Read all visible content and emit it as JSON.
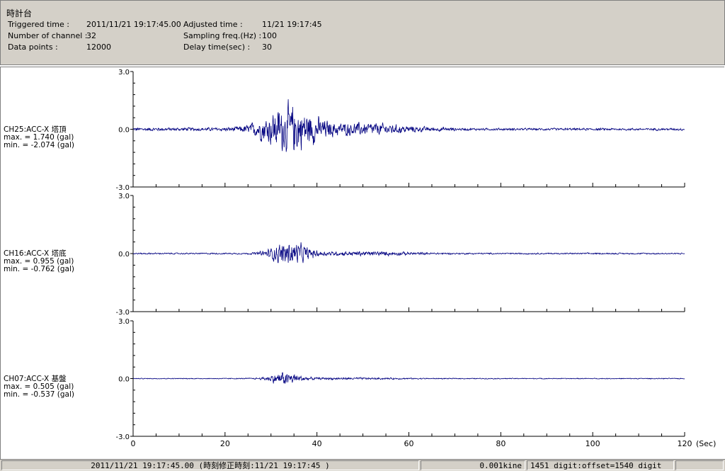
{
  "header": {
    "title": "時計台",
    "rows": [
      {
        "label": "Triggered time :",
        "value": "2011/11/21 19:17:45.00",
        "label2": "Adjusted time :",
        "value2": "11/21 19:17:45"
      },
      {
        "label": "Number of channel :",
        "value": "32",
        "label2": "Sampling freq.(Hz) :",
        "value2": "100"
      },
      {
        "label": "Data points :",
        "value": "12000",
        "label2": "Delay time(sec) :",
        "value2": "30"
      }
    ]
  },
  "channels": [
    {
      "name": "CH25:ACC-X 塔頂",
      "max": "max. = 1.740 (gal)",
      "min": "min. = -2.074 (gal)",
      "ytop": "3.0",
      "ymid": "0.0",
      "ybot": "-3.0"
    },
    {
      "name": "CH16:ACC-X 塔底",
      "max": "max. = 0.955 (gal)",
      "min": "min. = -0.762 (gal)",
      "ytop": "3.0",
      "ymid": "0.0",
      "ybot": "-3.0"
    },
    {
      "name": "CH07:ACC-X 基盤",
      "max": "max. = 0.505 (gal)",
      "min": "min. = -0.537 (gal)",
      "ytop": "3.0",
      "ymid": "0.0",
      "ybot": "-3.0"
    }
  ],
  "x_axis": {
    "ticks": [
      "0",
      "20",
      "40",
      "60",
      "80",
      "100",
      "120"
    ],
    "unit": "(Sec)",
    "range": [
      0,
      120
    ]
  },
  "y_range": [
    -3.0,
    3.0
  ],
  "trace_color": "#000080",
  "chart_data": {
    "type": "line",
    "x_range": [
      0,
      120
    ],
    "ylim": [
      -3.0,
      3.0
    ],
    "series": [
      {
        "name": "CH25:ACC-X 塔頂",
        "max": 1.74,
        "min": -2.074
      },
      {
        "name": "CH16:ACC-X 塔底",
        "max": 0.955,
        "min": -0.762
      },
      {
        "name": "CH07:ACC-X 基盤",
        "max": 0.505,
        "min": -0.537
      }
    ]
  },
  "status": {
    "time": "2011/11/21 19:17:45.00  (時刻修正時刻:11/21 19:17:45  )",
    "unit": "0.001kine",
    "digit": "1451 digit:offset=1540 digit"
  }
}
